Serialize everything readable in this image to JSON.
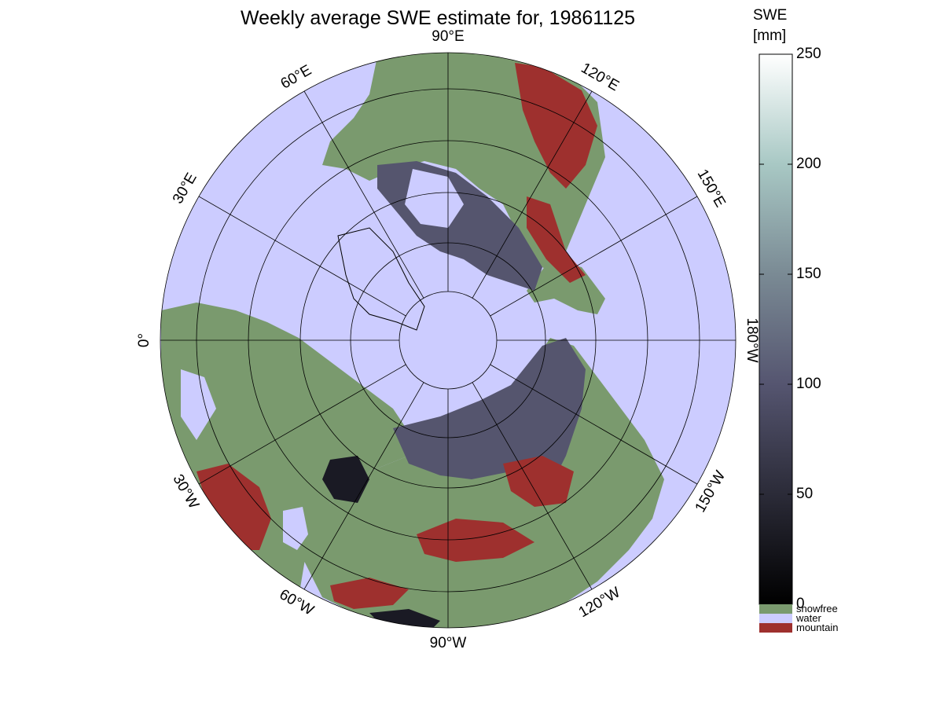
{
  "title": "Weekly average SWE estimate for, 19861125",
  "colorbar": {
    "label_line1": "SWE",
    "label_line2": "[mm]",
    "min": 0,
    "max": 250,
    "ticks": [
      0,
      50,
      100,
      150,
      200,
      250
    ],
    "tick_labels": [
      "0",
      "50",
      "100",
      "150",
      "200",
      "250"
    ],
    "categories": [
      {
        "label": "snowfree",
        "color": "#7a9a6e"
      },
      {
        "label": "water",
        "color": "#ccccff"
      },
      {
        "label": "mountain",
        "color": "#9e302e"
      }
    ]
  },
  "map": {
    "projection": "north polar stereographic",
    "graticule": true,
    "meridian_labels": [
      {
        "lon": 0,
        "text": "0°"
      },
      {
        "lon": -30,
        "text": "30°W"
      },
      {
        "lon": -60,
        "text": "60°W"
      },
      {
        "lon": -90,
        "text": "90°W"
      },
      {
        "lon": -120,
        "text": "120°W"
      },
      {
        "lon": -150,
        "text": "150°W"
      },
      {
        "lon": 180,
        "text": "180°W"
      },
      {
        "lon": 150,
        "text": "150°E"
      },
      {
        "lon": 120,
        "text": "120°E"
      },
      {
        "lon": 90,
        "text": "90°E"
      },
      {
        "lon": 60,
        "text": "60°E"
      },
      {
        "lon": 30,
        "text": "30°E"
      }
    ],
    "colors": {
      "water": "#ccccff",
      "snowfree": "#7a9a6e",
      "mountain": "#9e302e",
      "snow_low": "#1a1a24",
      "snow_mid": "#55556e",
      "snow_high": "#8a8aa5"
    }
  }
}
